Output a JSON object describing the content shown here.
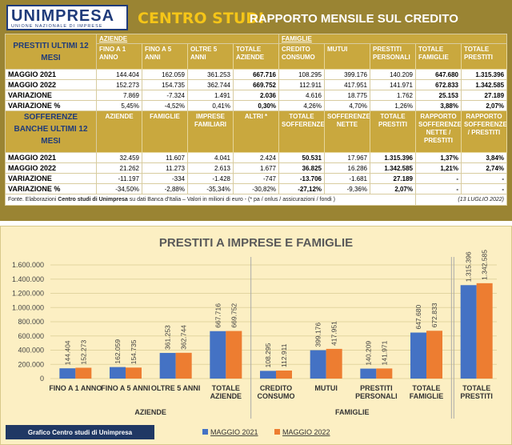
{
  "header": {
    "logo": "UNIMPRESA",
    "logo_subtitle": "UNIONE NAZIONALE DI IMPRESE",
    "section": "CENTRO STUDI",
    "title": "RAPPORTO MENSILE SUL CREDITO"
  },
  "table_prestiti": {
    "title": "PRESTITI ULTIMI 12 MESI",
    "groups": [
      "AZIENDE",
      "FAMIGLIE"
    ],
    "columns": [
      "FINO A 1 ANNO",
      "FINO A 5 ANNI",
      "OLTRE 5 ANNI",
      "TOTALE AZIENDE",
      "CREDITO CONSUMO",
      "MUTUI",
      "PRESTITI PERSONALI",
      "TOTALE FAMIGLIE",
      "TOTALE PRESTITI"
    ],
    "rows": [
      {
        "label": "MAGGIO 2021",
        "cells": [
          "144.404",
          "162.059",
          "361.253",
          "667.716",
          "108.295",
          "399.176",
          "140.209",
          "647.680",
          "1.315.396"
        ]
      },
      {
        "label": "MAGGIO 2022",
        "cells": [
          "152.273",
          "154.735",
          "362.744",
          "669.752",
          "112.911",
          "417.951",
          "141.971",
          "672.833",
          "1.342.585"
        ]
      },
      {
        "label": "VARIAZIONE",
        "cells": [
          "7.869",
          "-7.324",
          "1.491",
          "2.036",
          "4.616",
          "18.775",
          "1.762",
          "25.153",
          "27.189"
        ]
      },
      {
        "label": "VARIAZIONE %",
        "cells": [
          "5,45%",
          "-4,52%",
          "0,41%",
          "0,30%",
          "4,26%",
          "4,70%",
          "1,26%",
          "3,88%",
          "2,07%"
        ]
      }
    ]
  },
  "table_sofferenze": {
    "title": "SOFFERENZE BANCHE ULTIMI 12 MESI",
    "columns": [
      "AZIENDE",
      "FAMIGLIE",
      "IMPRESE FAMILIARI",
      "ALTRI *",
      "TOTALE SOFFERENZE",
      "SOFFERENZE NETTE",
      "TOTALE PRESTITI",
      "RAPPORTO SOFFERENZE NETTE / PRESTITI",
      "RAPPORTO SOFFERENZE / PRESTITI"
    ],
    "rows": [
      {
        "label": "MAGGIO 2021",
        "cells": [
          "32.459",
          "11.607",
          "4.041",
          "2.424",
          "50.531",
          "17.967",
          "1.315.396",
          "1,37%",
          "3,84%"
        ]
      },
      {
        "label": "MAGGIO 2022",
        "cells": [
          "21.262",
          "11.273",
          "2.613",
          "1.677",
          "36.825",
          "16.286",
          "1.342.585",
          "1,21%",
          "2,74%"
        ]
      },
      {
        "label": "VARIAZIONE",
        "cells": [
          "-11.197",
          "-334",
          "-1.428",
          "-747",
          "-13.706",
          "-1.681",
          "27.189",
          "-",
          "-"
        ]
      },
      {
        "label": "VARIAZIONE %",
        "cells": [
          "-34,50%",
          "-2,88%",
          "-35,34%",
          "-30,82%",
          "-27,12%",
          "-9,36%",
          "2,07%",
          "-",
          "-"
        ]
      }
    ]
  },
  "source": {
    "prefix": "Fonte. Elaborazioni ",
    "emphasis": "Centro studi di Unimpresa",
    "suffix": " su dati Banca d'Italia – Valori in milioni di euro - (* pa / onlus / assicurazioni / fondi )",
    "date": "(13 LUGLIO 2022)"
  },
  "chart_data": {
    "type": "bar",
    "title": "PRESTITI A IMPRESE E FAMIGLIE",
    "categories": [
      "FINO A 1 ANNO",
      "FINO A 5 ANNI",
      "OLTRE 5 ANNI",
      "TOTALE AZIENDE",
      "CREDITO CONSUMO",
      "MUTUI",
      "PRESTITI PERSONALI",
      "TOTALE FAMIGLIE",
      "TOTALE PRESTITI"
    ],
    "groups": [
      "AZIENDE",
      "FAMIGLIE"
    ],
    "series": [
      {
        "name": "MAGGIO 2021",
        "color": "#4472c4",
        "values": [
          144404,
          162059,
          361253,
          667716,
          108295,
          399176,
          140209,
          647680,
          1315396
        ],
        "value_labels": [
          "144.404",
          "162.059",
          "361.253",
          "667.716",
          "108.295",
          "399.176",
          "140.209",
          "647.680",
          "1.315.396"
        ]
      },
      {
        "name": "MAGGIO 2022",
        "color": "#ed7d31",
        "values": [
          152273,
          154735,
          362744,
          669752,
          112911,
          417951,
          141971,
          672833,
          1342585
        ],
        "value_labels": [
          "152.273",
          "154.735",
          "362.744",
          "669.752",
          "112.911",
          "417.951",
          "141.971",
          "672.833",
          "1.342.585"
        ]
      }
    ],
    "ylim": [
      0,
      1600000
    ],
    "yticks": [
      0,
      {
        "value": 200000,
        "label": "200.000"
      },
      {
        "value": 400000,
        "label": "400.000"
      },
      {
        "value": 600000,
        "label": "600.000"
      },
      {
        "value": 800000,
        "label": "800.000"
      },
      {
        "value": 1000000,
        "label": "1.000.000"
      },
      {
        "value": 1200000,
        "label": "1.200.000"
      },
      {
        "value": 1400000,
        "label": "1.400.000"
      },
      {
        "value": 1600000,
        "label": "1.600.000"
      }
    ],
    "grid": true,
    "credit": "Grafico Centro studi di Unimpresa"
  }
}
